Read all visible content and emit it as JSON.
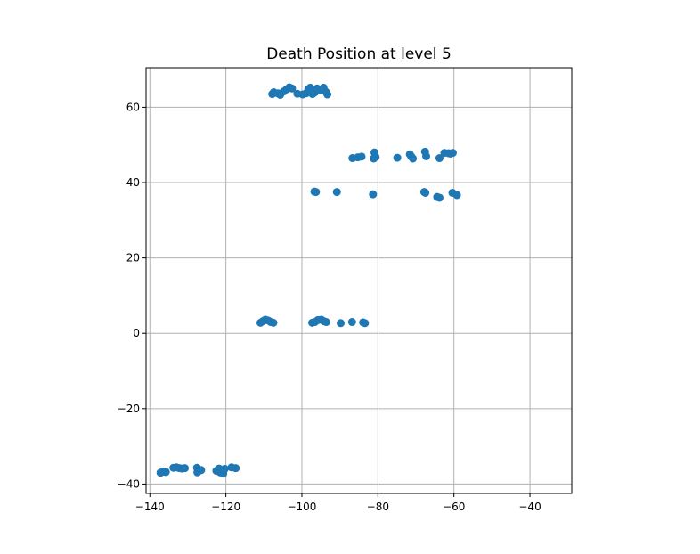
{
  "chart_data": {
    "type": "scatter",
    "title": "Death Position at level 5",
    "xlabel": "",
    "ylabel": "",
    "xlim": [
      -141,
      -29
    ],
    "ylim": [
      -42.5,
      70.5
    ],
    "xticks": [
      -140,
      -120,
      -100,
      -80,
      -60,
      -40
    ],
    "yticks": [
      -40,
      -20,
      0,
      20,
      40,
      60
    ],
    "grid": true,
    "marker_color": "#1f77b4",
    "series": [
      {
        "points": [
          [
            -137.2,
            -37.0
          ],
          [
            -136.5,
            -36.7
          ],
          [
            -135.8,
            -36.8
          ],
          [
            -133.8,
            -35.7
          ],
          [
            -133.0,
            -35.6
          ],
          [
            -132.2,
            -35.8
          ],
          [
            -131.5,
            -35.9
          ],
          [
            -130.8,
            -35.8
          ],
          [
            -127.6,
            -35.7
          ],
          [
            -127.5,
            -36.9
          ],
          [
            -126.5,
            -36.3
          ],
          [
            -122.5,
            -36.5
          ],
          [
            -121.8,
            -35.9
          ],
          [
            -121.5,
            -36.9
          ],
          [
            -120.7,
            -37.2
          ],
          [
            -120.3,
            -36.0
          ],
          [
            -118.5,
            -35.6
          ],
          [
            -117.4,
            -35.8
          ],
          [
            -110.9,
            2.8
          ],
          [
            -110.3,
            3.2
          ],
          [
            -109.6,
            3.6
          ],
          [
            -108.9,
            3.4
          ],
          [
            -108.2,
            3.0
          ],
          [
            -107.5,
            2.8
          ],
          [
            -97.3,
            2.8
          ],
          [
            -96.6,
            3.0
          ],
          [
            -95.8,
            3.5
          ],
          [
            -94.9,
            3.6
          ],
          [
            -94.2,
            3.2
          ],
          [
            -93.6,
            3.0
          ],
          [
            -89.8,
            2.7
          ],
          [
            -86.8,
            3.0
          ],
          [
            -83.9,
            2.9
          ],
          [
            -83.4,
            2.7
          ],
          [
            -107.8,
            63.5
          ],
          [
            -107.4,
            64.0
          ],
          [
            -106.3,
            63.7
          ],
          [
            -105.7,
            63.3
          ],
          [
            -104.8,
            64.2
          ],
          [
            -104.0,
            64.8
          ],
          [
            -103.3,
            65.3
          ],
          [
            -102.6,
            65.0
          ],
          [
            -101.2,
            63.6
          ],
          [
            -99.8,
            63.4
          ],
          [
            -98.9,
            63.7
          ],
          [
            -98.3,
            64.8
          ],
          [
            -97.8,
            65.2
          ],
          [
            -97.2,
            63.5
          ],
          [
            -96.5,
            64.0
          ],
          [
            -96.0,
            65.0
          ],
          [
            -95.0,
            64.6
          ],
          [
            -94.3,
            65.2
          ],
          [
            -93.7,
            64.1
          ],
          [
            -93.3,
            63.4
          ],
          [
            -86.7,
            46.5
          ],
          [
            -85.3,
            46.7
          ],
          [
            -84.3,
            46.9
          ],
          [
            -81.1,
            46.4
          ],
          [
            -80.9,
            48.0
          ],
          [
            -80.6,
            46.8
          ],
          [
            -74.9,
            46.6
          ],
          [
            -71.6,
            47.5
          ],
          [
            -71.2,
            46.9
          ],
          [
            -70.8,
            46.4
          ],
          [
            -67.6,
            48.2
          ],
          [
            -67.3,
            47.0
          ],
          [
            -63.8,
            46.5
          ],
          [
            -62.5,
            47.9
          ],
          [
            -61.4,
            47.8
          ],
          [
            -60.9,
            47.7
          ],
          [
            -60.3,
            47.9
          ],
          [
            -96.7,
            37.6
          ],
          [
            -96.3,
            37.5
          ],
          [
            -90.8,
            37.5
          ],
          [
            -81.3,
            36.9
          ],
          [
            -67.8,
            37.5
          ],
          [
            -67.5,
            37.3
          ],
          [
            -64.4,
            36.2
          ],
          [
            -63.8,
            36.0
          ],
          [
            -60.4,
            37.3
          ],
          [
            -59.2,
            36.7
          ]
        ]
      }
    ]
  }
}
